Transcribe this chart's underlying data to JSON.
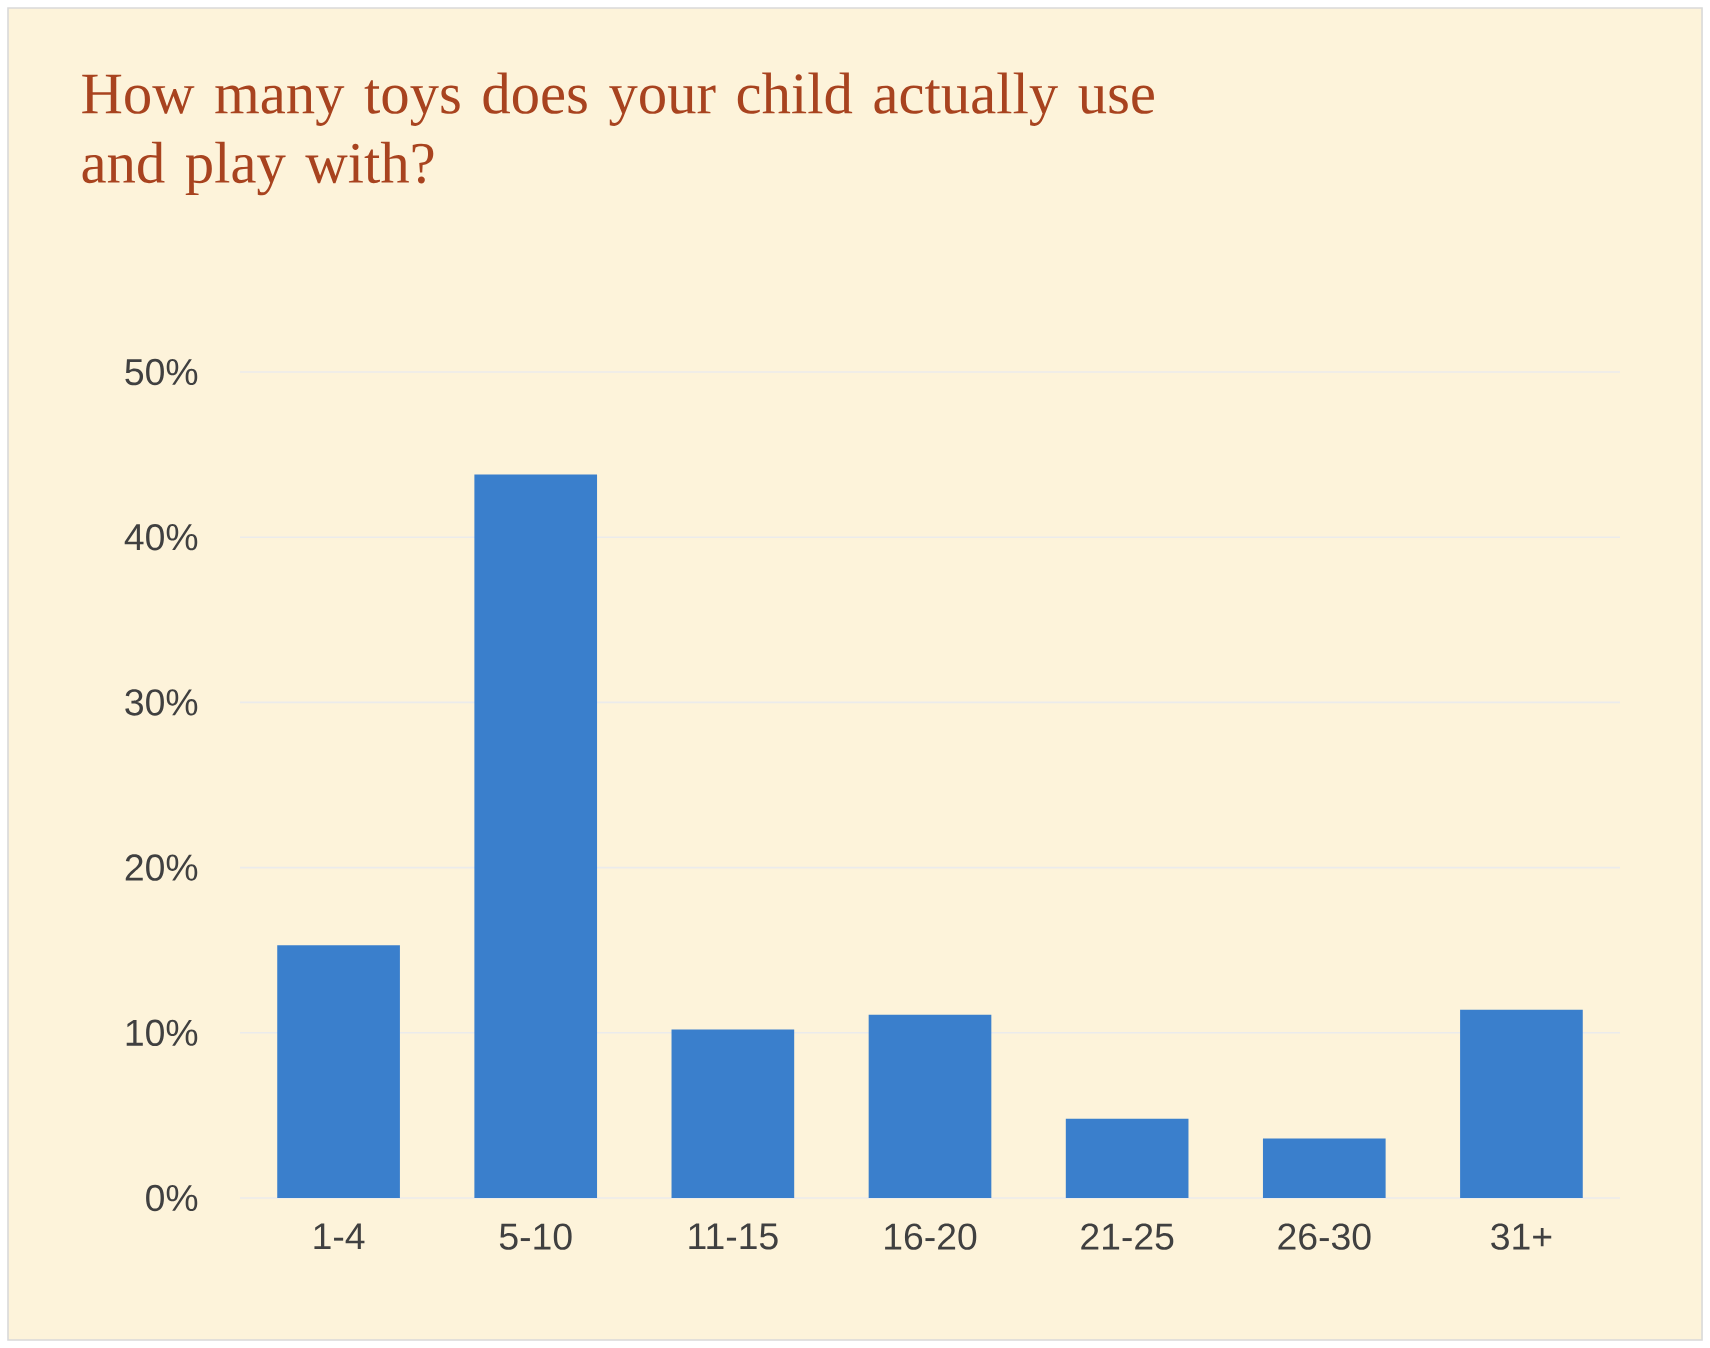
{
  "chart_data": {
    "type": "bar",
    "title": "How many toys does your child actually use and play with?",
    "categories": [
      "1-4",
      "5-10",
      "11-15",
      "16-20",
      "21-25",
      "26-30",
      "31+"
    ],
    "values": [
      15.3,
      43.8,
      10.2,
      11.1,
      4.8,
      3.6,
      11.4
    ],
    "color": "#3a7fcc",
    "ylim": [
      0,
      50
    ],
    "yticks": [
      {
        "value": 0,
        "label": "0%"
      },
      {
        "value": 10,
        "label": "10%"
      },
      {
        "value": 20,
        "label": "20%"
      },
      {
        "value": 30,
        "label": "30%"
      },
      {
        "value": 40,
        "label": "40%"
      },
      {
        "value": 50,
        "label": "50%"
      }
    ],
    "grid": "y"
  }
}
